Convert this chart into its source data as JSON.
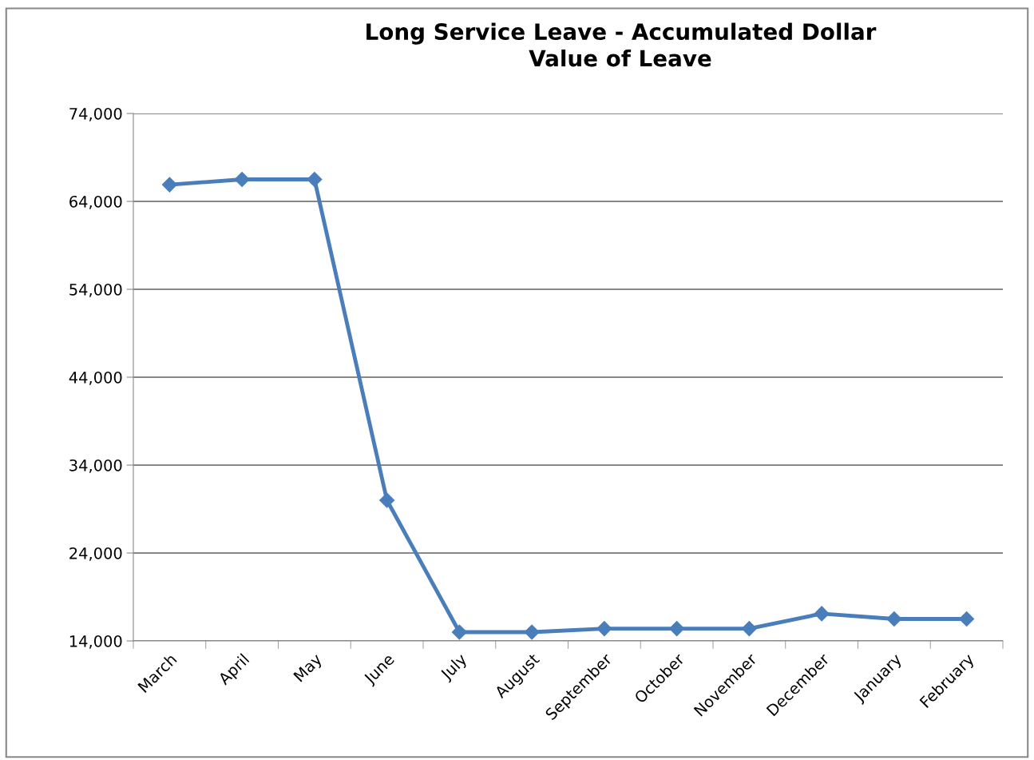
{
  "chart_data": {
    "type": "line",
    "title": "Long Service Leave - Accumulated Dollar\nValue of Leave",
    "categories": [
      "March",
      "April",
      "May",
      "June",
      "July",
      "August",
      "September",
      "October",
      "November",
      "December",
      "January",
      "February"
    ],
    "series": [
      {
        "color": "#4a7ebb",
        "values": [
          65900,
          66500,
          66500,
          30000,
          15000,
          15000,
          15400,
          15400,
          15400,
          17100,
          16500,
          16500
        ]
      }
    ],
    "ylim": [
      14000,
      74000
    ],
    "yticks": [
      {
        "value": 14000,
        "label": "14,000"
      },
      {
        "value": 24000,
        "label": "24,000"
      },
      {
        "value": 34000,
        "label": "34,000"
      },
      {
        "value": 44000,
        "label": "44,000"
      },
      {
        "value": 54000,
        "label": "54,000"
      },
      {
        "value": 64000,
        "label": "64,000"
      },
      {
        "value": 74000,
        "label": "74,000"
      }
    ],
    "grid": "y",
    "legend": false,
    "marker": "diamond",
    "line_style": "solid"
  }
}
